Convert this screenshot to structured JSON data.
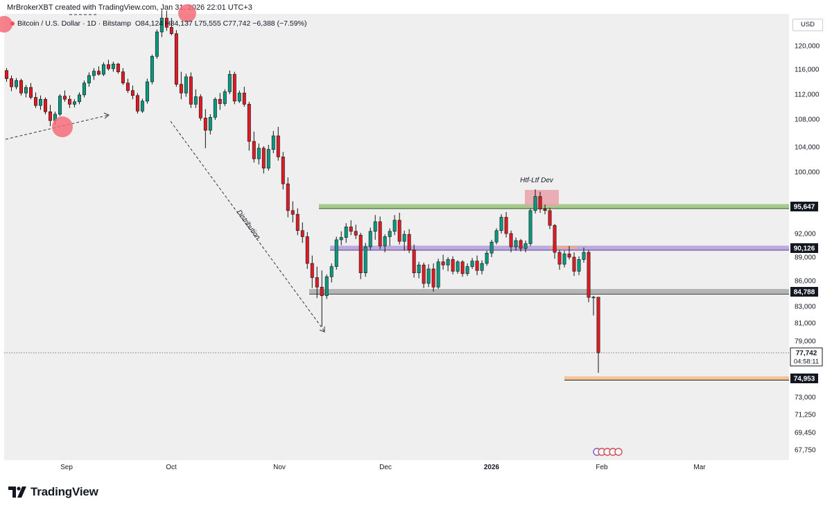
{
  "header": {
    "author_line": "MrBrokerXBT created with TradingView.com, Jan 31, 2026 22:01 UTC+3"
  },
  "symbol": {
    "pair": "Bitcoin / U.S. Dollar",
    "interval": "1D",
    "exchange": "Bitstamp",
    "open": "O84,124",
    "high": "H84,137",
    "low": "L75,555",
    "close": "C77,742",
    "change": "−6,388 (−7.59%)"
  },
  "currency": "USD",
  "brand": {
    "name": "TradingView",
    "icon": "tradingview-logo-icon"
  },
  "colors": {
    "up": "#089981",
    "down": "#e01b24",
    "green_zone": "#8fbc6e",
    "purple_zone": "#b39ddb",
    "grey_zone": "#a6a6a6",
    "orange_zone": "#f5c08f",
    "dev_box": "#e8a1a8",
    "marker": "#f36c78"
  },
  "chart_data": {
    "type": "candlestick",
    "symbol": "Bitcoin / U.S. Dollar",
    "interval": "1D",
    "exchange": "Bitstamp",
    "last_candle": {
      "open": 84124,
      "high": 84137,
      "low": 75555,
      "close": 77742,
      "change": -6388,
      "change_pct": -7.59,
      "countdown": "04:58:11"
    },
    "x_ticks": [
      "Sep",
      "Oct",
      "Nov",
      "Dec",
      "2026",
      "Feb",
      "Mar"
    ],
    "y_ticks": [
      120000,
      116000,
      112000,
      108000,
      104000,
      100000,
      92000,
      89000,
      86000,
      83000,
      81000,
      79000,
      73000,
      71250,
      69450,
      67750
    ],
    "highlighted_levels": [
      {
        "label": "95,647",
        "value": 95647
      },
      {
        "label": "90,126",
        "value": 90126
      },
      {
        "label": "84,788",
        "value": 84788
      },
      {
        "label": "77,742",
        "value": 77742
      },
      {
        "label": "74,953",
        "value": 74953
      }
    ],
    "annotations": [
      "Htf-Ltf Dev",
      "Distribution"
    ],
    "candles": [
      [
        115800,
        116200,
        114000,
        114500
      ],
      [
        114500,
        115000,
        112500,
        113200
      ],
      [
        113200,
        114600,
        112800,
        114200
      ],
      [
        114200,
        114500,
        111800,
        112200
      ],
      [
        112200,
        113500,
        111500,
        113100
      ],
      [
        113100,
        113800,
        111200,
        111500
      ],
      [
        111500,
        112300,
        109800,
        110200
      ],
      [
        110200,
        111800,
        109500,
        111200
      ],
      [
        111200,
        111500,
        108800,
        109200
      ],
      [
        109200,
        110300,
        107000,
        107800
      ],
      [
        107800,
        109200,
        107200,
        108800
      ],
      [
        108800,
        112000,
        108500,
        111700
      ],
      [
        111700,
        112600,
        110800,
        111200
      ],
      [
        111200,
        111800,
        109800,
        110400
      ],
      [
        110400,
        111200,
        109900,
        110800
      ],
      [
        110800,
        112300,
        110400,
        111900
      ],
      [
        111900,
        114200,
        111500,
        113800
      ],
      [
        113800,
        115500,
        113200,
        115000
      ],
      [
        115000,
        116200,
        114300,
        115700
      ],
      [
        115700,
        116500,
        115000,
        115200
      ],
      [
        115200,
        117200,
        114900,
        116800
      ],
      [
        116800,
        117600,
        115800,
        116100
      ],
      [
        116100,
        117300,
        115600,
        116900
      ],
      [
        116900,
        117100,
        115300,
        115600
      ],
      [
        115600,
        116200,
        113500,
        113800
      ],
      [
        113800,
        114500,
        112200,
        112600
      ],
      [
        112600,
        113400,
        111200,
        111800
      ],
      [
        111800,
        112200,
        108900,
        109300
      ],
      [
        109300,
        111300,
        109000,
        110900
      ],
      [
        110900,
        114500,
        110500,
        114000
      ],
      [
        114000,
        118500,
        113600,
        118200
      ],
      [
        118200,
        122800,
        117800,
        122400
      ],
      [
        122400,
        126200,
        121500,
        124800
      ],
      [
        124800,
        126100,
        122600,
        123200
      ],
      [
        123200,
        124800,
        121800,
        122100
      ],
      [
        122100,
        122700,
        113200,
        113600
      ],
      [
        113600,
        115600,
        111200,
        112200
      ],
      [
        112200,
        115300,
        111600,
        114800
      ],
      [
        114800,
        115500,
        109800,
        110400
      ],
      [
        110400,
        112800,
        109800,
        111600
      ],
      [
        111600,
        112000,
        107800,
        108200
      ],
      [
        108200,
        109600,
        103800,
        106400
      ],
      [
        106400,
        108800,
        105800,
        108300
      ],
      [
        108300,
        111500,
        107900,
        111200
      ],
      [
        111200,
        112200,
        109500,
        110500
      ],
      [
        110500,
        112800,
        110100,
        112400
      ],
      [
        112400,
        115800,
        112000,
        115200
      ],
      [
        115200,
        115600,
        110400,
        110900
      ],
      [
        110900,
        112600,
        110600,
        112200
      ],
      [
        112200,
        113200,
        110000,
        110400
      ],
      [
        110400,
        110800,
        103400,
        104800
      ],
      [
        104800,
        106200,
        101500,
        102100
      ],
      [
        102100,
        104500,
        101200,
        103800
      ],
      [
        103800,
        104100,
        99800,
        100600
      ],
      [
        100600,
        104300,
        100200,
        103600
      ],
      [
        103600,
        106300,
        103000,
        105600
      ],
      [
        105600,
        106900,
        101800,
        102400
      ],
      [
        102400,
        103200,
        97800,
        98500
      ],
      [
        98500,
        99300,
        94200,
        95100
      ],
      [
        95100,
        96300,
        93500,
        94600
      ],
      [
        94600,
        95400,
        91800,
        92400
      ],
      [
        92400,
        93500,
        90800,
        91600
      ],
      [
        91600,
        92200,
        87500,
        88200
      ],
      [
        88200,
        89200,
        85200,
        86400
      ],
      [
        86400,
        87800,
        84000,
        85300
      ],
      [
        85300,
        87300,
        80600,
        84300
      ],
      [
        84300,
        86800,
        83900,
        86500
      ],
      [
        86500,
        88200,
        85800,
        87800
      ],
      [
        87800,
        91600,
        87400,
        91200
      ],
      [
        91200,
        92300,
        90500,
        91500
      ],
      [
        91500,
        93400,
        90800,
        92900
      ],
      [
        92900,
        93800,
        91800,
        92300
      ],
      [
        92300,
        93200,
        91300,
        91800
      ],
      [
        91800,
        92100,
        86200,
        87000
      ],
      [
        87000,
        90800,
        86500,
        90300
      ],
      [
        90300,
        92800,
        89900,
        92300
      ],
      [
        92300,
        94500,
        91200,
        93600
      ],
      [
        93600,
        94300,
        90000,
        90400
      ],
      [
        90400,
        91900,
        89600,
        91600
      ],
      [
        91600,
        92700,
        90400,
        92300
      ],
      [
        92300,
        94500,
        91800,
        93800
      ],
      [
        93800,
        94800,
        90600,
        91000
      ],
      [
        91000,
        92400,
        89800,
        91900
      ],
      [
        91900,
        92600,
        89500,
        89900
      ],
      [
        89900,
        90600,
        86400,
        87000
      ],
      [
        87000,
        88400,
        86300,
        88000
      ],
      [
        88000,
        88300,
        85200,
        85700
      ],
      [
        85700,
        88100,
        85300,
        87500
      ],
      [
        87500,
        88200,
        84800,
        85300
      ],
      [
        85300,
        88800,
        85100,
        88400
      ],
      [
        88400,
        89300,
        87400,
        88000
      ],
      [
        88000,
        89000,
        87200,
        88700
      ],
      [
        88700,
        89100,
        86800,
        87200
      ],
      [
        87200,
        88600,
        86900,
        88400
      ],
      [
        88400,
        88600,
        86500,
        86900
      ],
      [
        86900,
        88200,
        86600,
        87800
      ],
      [
        87800,
        88900,
        87500,
        88500
      ],
      [
        88500,
        89200,
        86700,
        87300
      ],
      [
        87300,
        88600,
        86800,
        88200
      ],
      [
        88200,
        89800,
        87900,
        89500
      ],
      [
        89500,
        91200,
        89000,
        90900
      ],
      [
        90900,
        92700,
        90600,
        92400
      ],
      [
        92400,
        94600,
        92000,
        94200
      ],
      [
        94200,
        94900,
        91500,
        92000
      ],
      [
        92000,
        92400,
        89600,
        90300
      ],
      [
        90300,
        91500,
        89800,
        91100
      ],
      [
        91100,
        91300,
        89700,
        90100
      ],
      [
        90100,
        91100,
        89600,
        90700
      ],
      [
        90700,
        95400,
        90400,
        95100
      ],
      [
        95100,
        97800,
        94700,
        96900
      ],
      [
        96900,
        97500,
        94800,
        95300
      ],
      [
        95300,
        95900,
        94600,
        95100
      ],
      [
        95100,
        95500,
        92600,
        93100
      ],
      [
        93100,
        93300,
        88800,
        89600
      ],
      [
        89600,
        89900,
        87400,
        88100
      ],
      [
        88100,
        89800,
        87700,
        89400
      ],
      [
        89400,
        90400,
        88700,
        89000
      ],
      [
        89000,
        89600,
        86600,
        87200
      ],
      [
        87200,
        89100,
        86700,
        88700
      ],
      [
        88700,
        90200,
        88300,
        89600
      ],
      [
        89600,
        89900,
        83500,
        84100
      ],
      [
        84100,
        84300,
        81900,
        84124
      ],
      [
        84124,
        84137,
        75555,
        77742
      ]
    ]
  }
}
